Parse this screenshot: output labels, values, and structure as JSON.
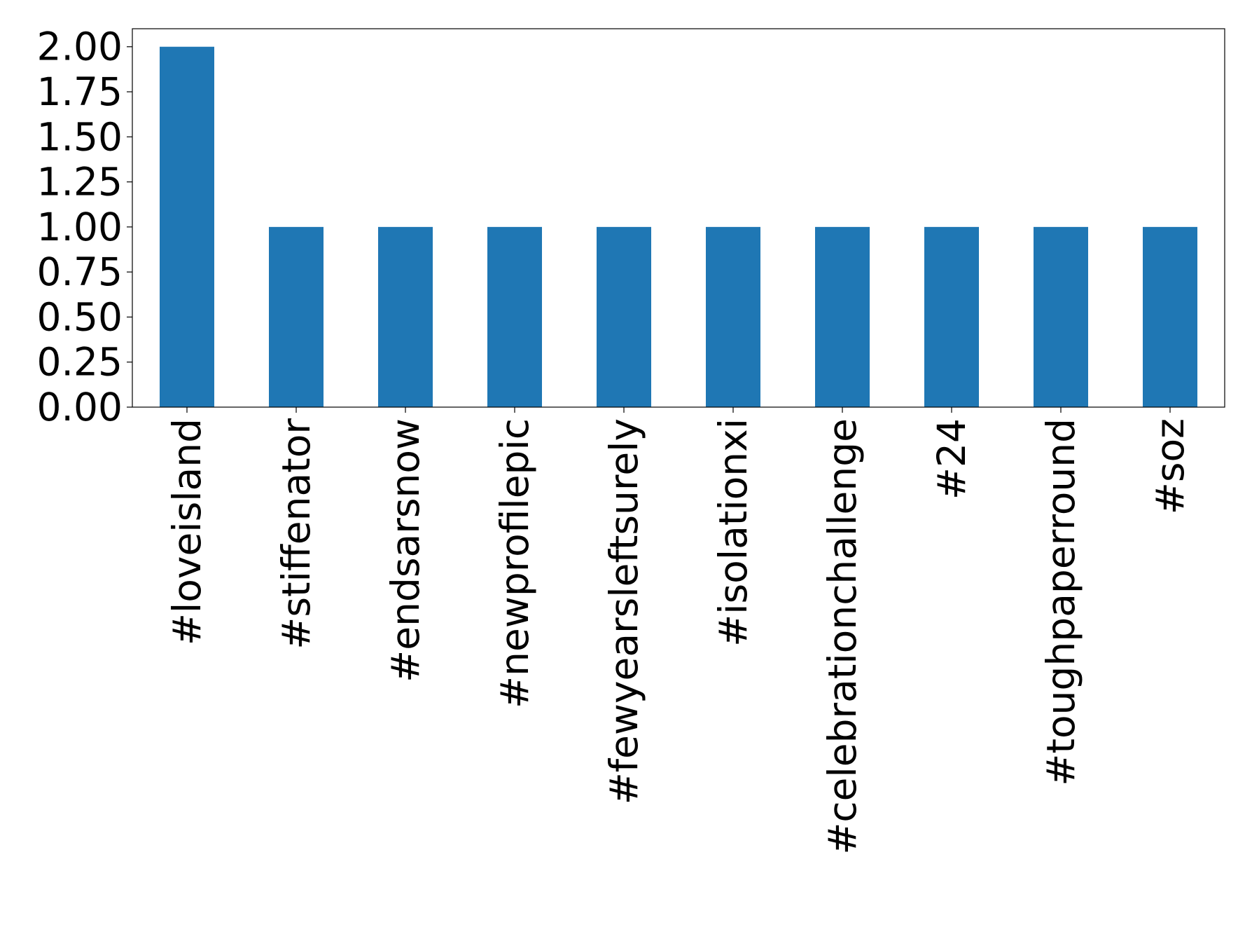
{
  "chart_data": {
    "type": "bar",
    "categories": [
      "#loveisland",
      "#stiffenator",
      "#endsarsnow",
      "#newprofilepic",
      "#fewyearsleftsurely",
      "#isolationxi",
      "#celebrationchallenge",
      "#24",
      "#toughpaperround",
      "#soz"
    ],
    "values": [
      2,
      1,
      1,
      1,
      1,
      1,
      1,
      1,
      1,
      1
    ],
    "color": "#1f77b4",
    "ylim": [
      0,
      2.1
    ],
    "yticks": [
      {
        "value": 0,
        "label": "0.00"
      },
      {
        "value": 0.25,
        "label": "0.25"
      },
      {
        "value": 0.5,
        "label": "0.50"
      },
      {
        "value": 0.75,
        "label": "0.75"
      },
      {
        "value": 1,
        "label": "1.00"
      },
      {
        "value": 1.25,
        "label": "1.25"
      },
      {
        "value": 1.5,
        "label": "1.50"
      },
      {
        "value": 1.75,
        "label": "1.75"
      },
      {
        "value": 2,
        "label": "2.00"
      }
    ],
    "grid": false
  }
}
